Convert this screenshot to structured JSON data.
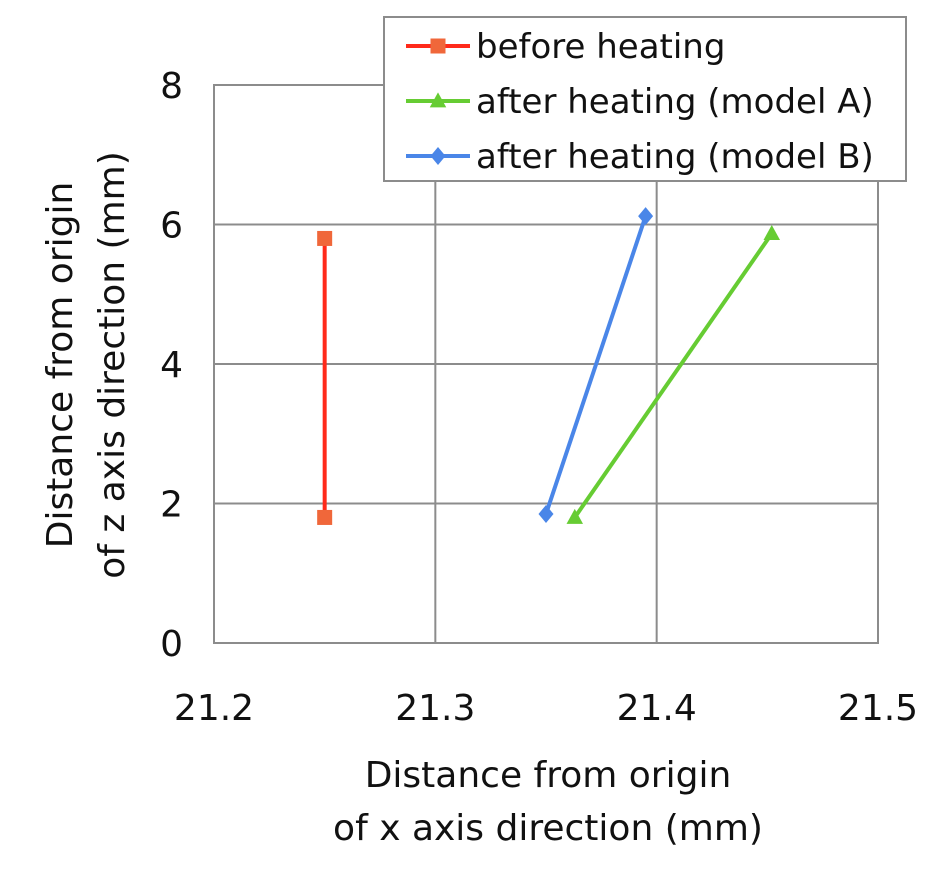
{
  "chart_data": {
    "type": "line",
    "title": "",
    "xlabel_lines": [
      "Distance from origin",
      "of x axis direction  (mm)"
    ],
    "ylabel_lines": [
      "Distance from origin",
      "of z axis direction (mm)"
    ],
    "xlim": [
      21.2,
      21.5
    ],
    "ylim": [
      0,
      8
    ],
    "x_ticks": [
      21.2,
      21.3,
      21.4,
      21.5
    ],
    "x_tick_labels": [
      "21.2",
      "21.3",
      "21.4",
      "21.5"
    ],
    "y_ticks": [
      0,
      2,
      4,
      6,
      8
    ],
    "y_tick_labels": [
      "0",
      "2",
      "4",
      "6",
      "8"
    ],
    "grid": true,
    "legend_position": "top-right",
    "series": [
      {
        "name": "before heating",
        "color": "#ff2a1a",
        "marker_color": "#f0673a",
        "marker": "square",
        "points": [
          {
            "x": 21.25,
            "y": 1.8
          },
          {
            "x": 21.25,
            "y": 5.8
          }
        ]
      },
      {
        "name": "after heating (model A)",
        "color": "#66cc33",
        "marker_color": "#66cc33",
        "marker": "triangle",
        "points": [
          {
            "x": 21.363,
            "y": 1.8
          },
          {
            "x": 21.452,
            "y": 5.87
          }
        ]
      },
      {
        "name": "after heating (model B)",
        "color": "#4a86e8",
        "marker_color": "#4a86e8",
        "marker": "diamond",
        "points": [
          {
            "x": 21.35,
            "y": 1.85
          },
          {
            "x": 21.395,
            "y": 6.12
          }
        ]
      }
    ]
  }
}
